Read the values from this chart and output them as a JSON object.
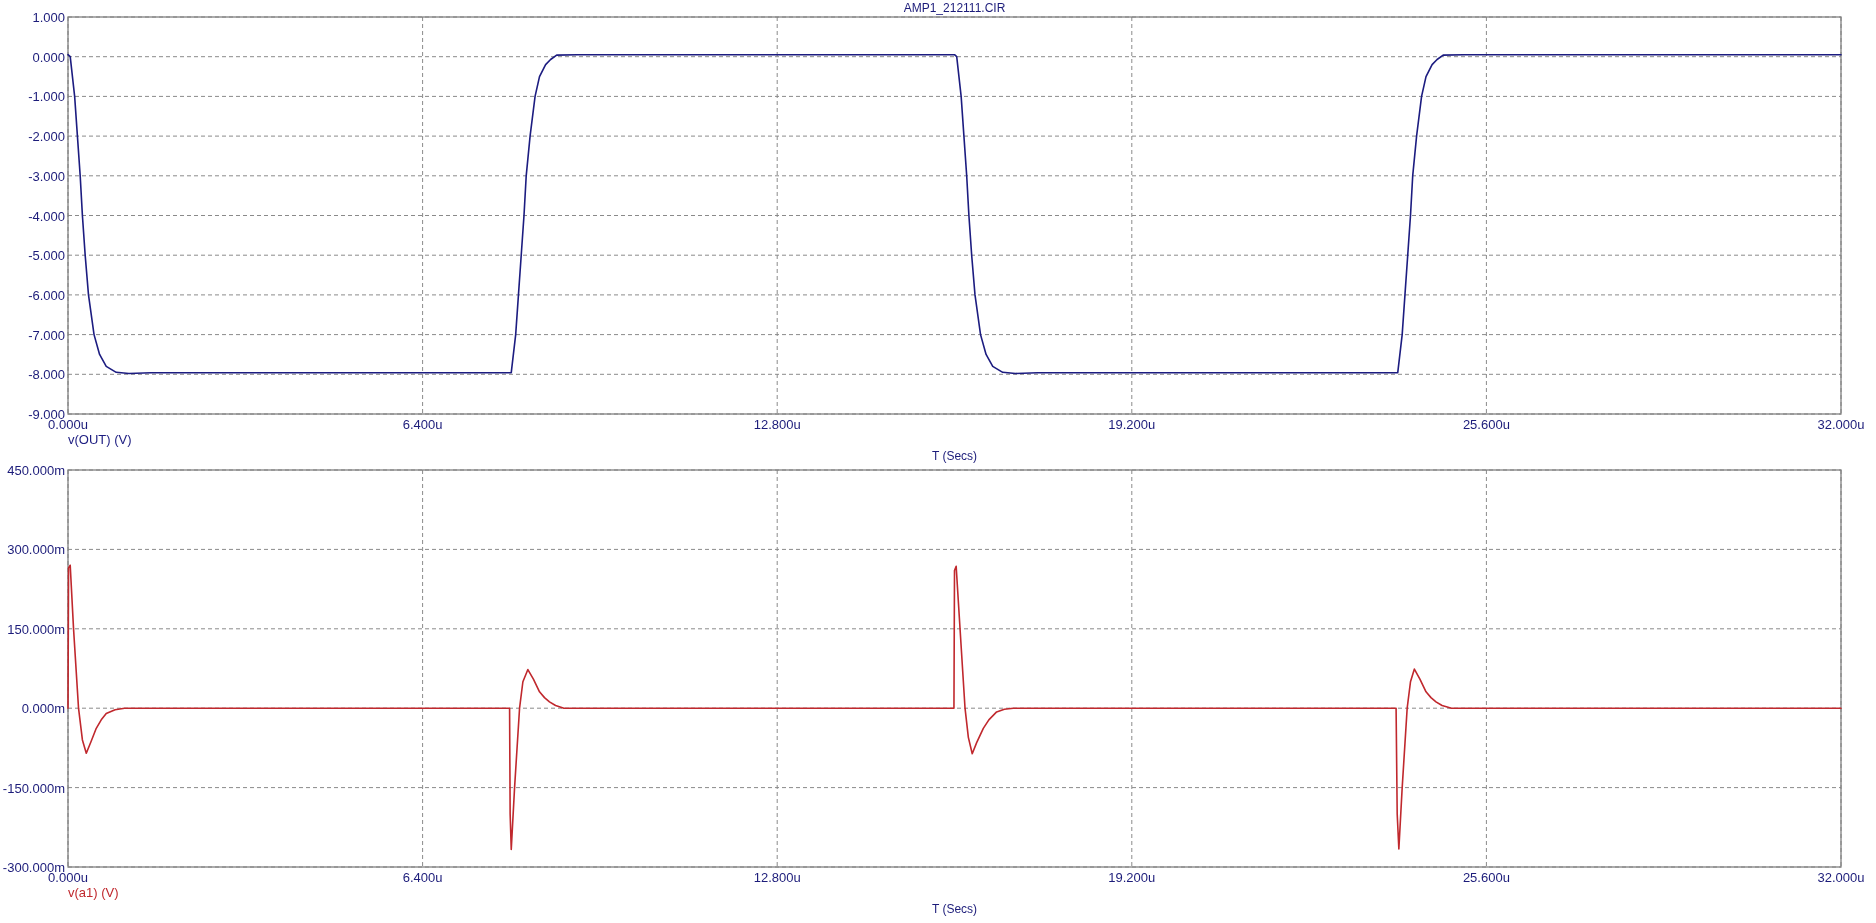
{
  "chart_data": [
    {
      "type": "line",
      "title": "AMP1_212111.CIR",
      "xlabel": "T (Secs)",
      "xlim": [
        0,
        32
      ],
      "xticks": [
        {
          "value": 0,
          "label": "0.000u"
        },
        {
          "value": 6.4,
          "label": "6.400u"
        },
        {
          "value": 12.8,
          "label": "12.800u"
        },
        {
          "value": 19.2,
          "label": "19.200u"
        },
        {
          "value": 25.6,
          "label": "25.600u"
        },
        {
          "value": 32,
          "label": "32.000u"
        }
      ],
      "ylim": [
        -9,
        1
      ],
      "yticks": [
        {
          "value": 1,
          "label": "1.000"
        },
        {
          "value": 0,
          "label": "0.000"
        },
        {
          "value": -1,
          "label": "-1.000"
        },
        {
          "value": -2,
          "label": "-2.000"
        },
        {
          "value": -3,
          "label": "-3.000"
        },
        {
          "value": -4,
          "label": "-4.000"
        },
        {
          "value": -5,
          "label": "-5.000"
        },
        {
          "value": -6,
          "label": "-6.000"
        },
        {
          "value": -7,
          "label": "-7.000"
        },
        {
          "value": -8,
          "label": "-8.000"
        },
        {
          "value": -9,
          "label": "-9.000"
        }
      ],
      "grid": true,
      "legend": "bottom left",
      "line_style": "solid",
      "x": [
        0,
        0.04,
        0.12,
        0.17,
        0.22,
        0.26,
        0.31,
        0.37,
        0.47,
        0.57,
        0.69,
        0.87,
        1.1,
        1.5,
        8,
        8.08,
        8.13,
        8.18,
        8.23,
        8.27,
        8.34,
        8.43,
        8.51,
        8.62,
        8.71,
        8.82,
        9.2,
        16,
        16.04,
        16.12,
        16.17,
        16.22,
        16.26,
        16.31,
        16.37,
        16.47,
        16.57,
        16.69,
        16.87,
        17.1,
        17.5,
        24,
        24.08,
        24.13,
        24.18,
        24.23,
        24.27,
        24.34,
        24.43,
        24.51,
        24.62,
        24.71,
        24.82,
        25.2,
        32
      ],
      "series": [
        {
          "name": "v(OUT) (V)",
          "color": "#1c1c80",
          "values": [
            0.05,
            0,
            -1,
            -2,
            -3,
            -4,
            -5,
            -6,
            -7,
            -7.5,
            -7.8,
            -7.95,
            -7.98,
            -7.96,
            -7.96,
            -7,
            -6,
            -5,
            -4,
            -3,
            -2,
            -1,
            -0.5,
            -0.2,
            -0.07,
            0.04,
            0.05,
            0.05,
            0,
            -1,
            -2,
            -3,
            -4,
            -5,
            -6,
            -7,
            -7.5,
            -7.8,
            -7.95,
            -7.98,
            -7.96,
            -7.96,
            -7,
            -6,
            -5,
            -4,
            -3,
            -2,
            -1,
            -0.5,
            -0.2,
            -0.07,
            0.04,
            0.05,
            0.05
          ]
        }
      ]
    },
    {
      "type": "line",
      "xlabel": "T (Secs)",
      "xlim": [
        0,
        32
      ],
      "xticks": [
        {
          "value": 0,
          "label": "0.000u"
        },
        {
          "value": 6.4,
          "label": "6.400u"
        },
        {
          "value": 12.8,
          "label": "12.800u"
        },
        {
          "value": 19.2,
          "label": "19.200u"
        },
        {
          "value": 25.6,
          "label": "25.600u"
        },
        {
          "value": 32,
          "label": "32.000u"
        }
      ],
      "ylim": [
        -300,
        450
      ],
      "yticks": [
        {
          "value": 450,
          "label": "450.000m"
        },
        {
          "value": 300,
          "label": "300.000m"
        },
        {
          "value": 150,
          "label": "150.000m"
        },
        {
          "value": 0,
          "label": "0.000m"
        },
        {
          "value": -150,
          "label": "-150.000m"
        },
        {
          "value": -300,
          "label": "-300.000m"
        }
      ],
      "grid": true,
      "legend": "bottom left",
      "line_style": "solid",
      "x": [
        0,
        0.01,
        0.04,
        0.1,
        0.19,
        0.26,
        0.33,
        0.42,
        0.51,
        0.6,
        0.69,
        0.85,
        1.02,
        7.97,
        7.98,
        8,
        8.06,
        8.15,
        8.21,
        8.3,
        8.4,
        8.51,
        8.6,
        8.69,
        8.8,
        8.95,
        15.99,
        16,
        16.03,
        16.1,
        16.19,
        16.25,
        16.32,
        16.4,
        16.52,
        16.62,
        16.76,
        16.9,
        17.06,
        23.97,
        23.99,
        24.02,
        24.08,
        24.17,
        24.23,
        24.3,
        24.4,
        24.51,
        24.6,
        24.69,
        24.8,
        24.97,
        32
      ],
      "series": [
        {
          "name": "v(a1) (V)",
          "color": "#c0282d",
          "values": [
            0,
            265,
            270,
            150,
            0,
            -60,
            -85,
            -62,
            -38,
            -22,
            -10,
            -3,
            0,
            0,
            -200,
            -267,
            -150,
            0,
            50,
            73,
            55,
            31,
            20,
            12,
            5,
            0,
            0,
            260,
            268,
            150,
            0,
            -55,
            -86,
            -65,
            -38,
            -22,
            -7,
            -2,
            0,
            0,
            -200,
            -266,
            -150,
            0,
            50,
            74,
            55,
            31,
            20,
            12,
            5,
            0,
            0
          ]
        }
      ]
    }
  ]
}
